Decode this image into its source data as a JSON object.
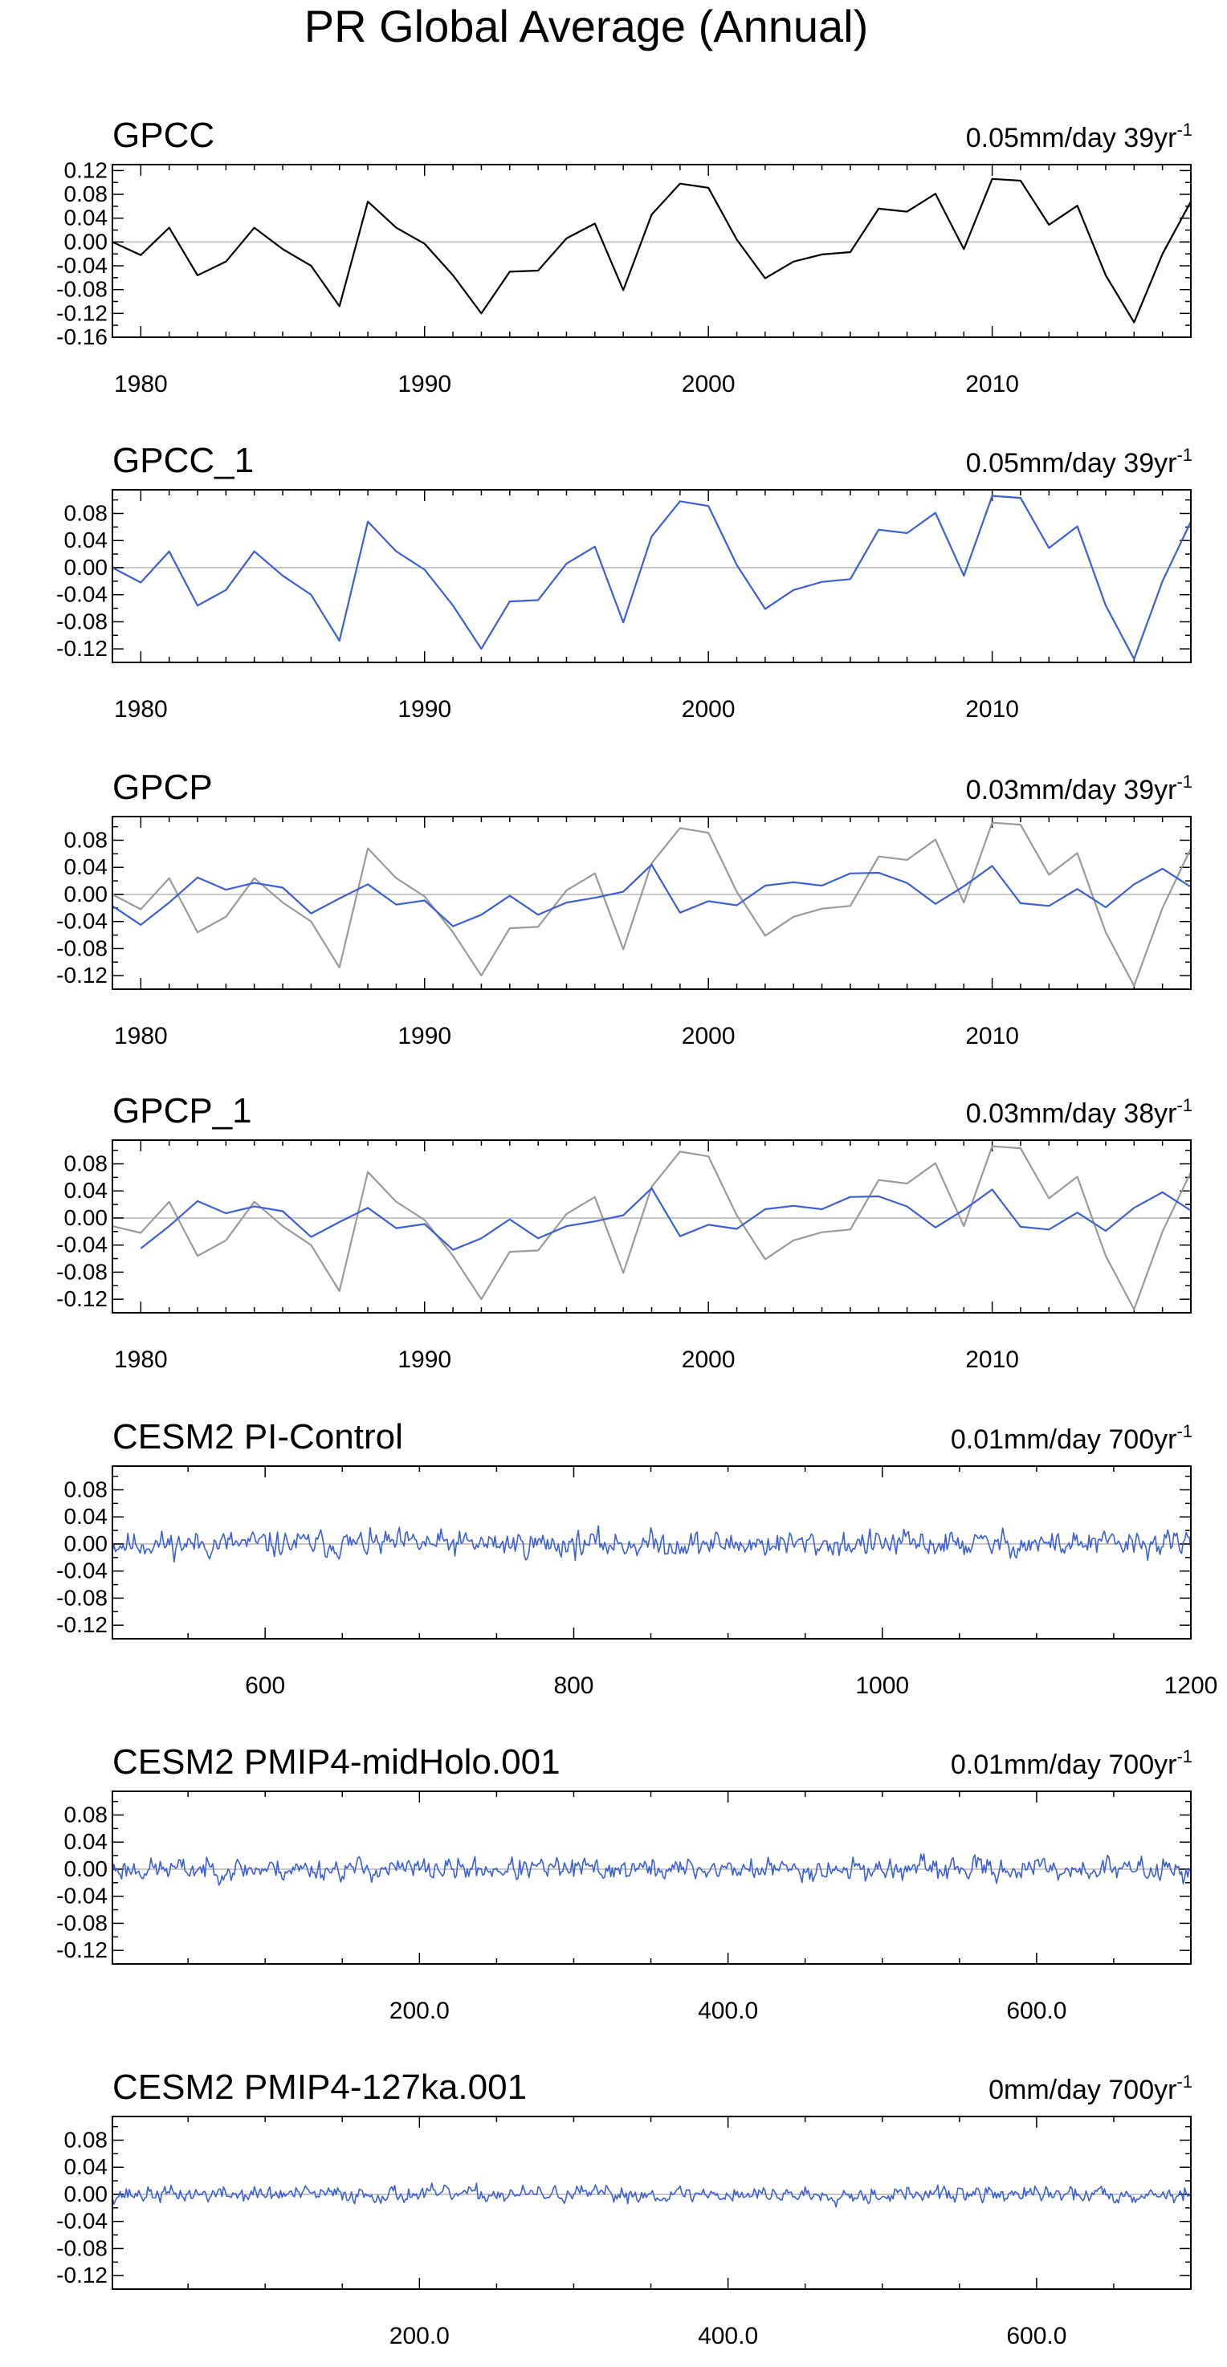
{
  "title": "PR Global Average (Annual)",
  "colors": {
    "observed": "#000000",
    "model": "#3a5fd9",
    "reference": "#9a9a9a",
    "zero_line": "#c8c8c8"
  },
  "chart_data": [
    {
      "type": "line",
      "title": "GPCC",
      "right_label": "0.05mm/day 39yr",
      "right_label_sup": "-1",
      "x_range": [
        1979,
        2017
      ],
      "ylim": [
        -0.16,
        0.13
      ],
      "y_ticks": [
        "0.12",
        "0.08",
        "0.04",
        "0.00",
        "-0.04",
        "-0.08",
        "-0.12",
        "-0.16"
      ],
      "x_ticks": [
        "1980",
        "1990",
        "2000",
        "2010"
      ],
      "series": [
        {
          "color": "#000000",
          "x_start": 1979,
          "values": [
            0.0,
            -0.022,
            0.024,
            -0.056,
            -0.033,
            0.024,
            -0.012,
            -0.04,
            -0.108,
            0.068,
            0.024,
            -0.003,
            -0.056,
            -0.12,
            -0.05,
            -0.048,
            0.006,
            0.031,
            -0.081,
            0.046,
            0.098,
            0.091,
            0.004,
            -0.061,
            -0.033,
            -0.021,
            -0.017,
            0.056,
            0.051,
            0.081,
            -0.012,
            0.106,
            0.103,
            0.029,
            0.061,
            -0.056,
            -0.135,
            -0.02,
            0.068
          ]
        }
      ]
    },
    {
      "type": "line",
      "title": "GPCC_1",
      "right_label": "0.05mm/day 39yr",
      "right_label_sup": "-1",
      "x_range": [
        1979,
        2017
      ],
      "ylim": [
        -0.14,
        0.115
      ],
      "y_ticks": [
        "0.08",
        "0.04",
        "0.00",
        "-0.04",
        "-0.08",
        "-0.12"
      ],
      "x_ticks": [
        "1980",
        "1990",
        "2000",
        "2010"
      ],
      "series": [
        {
          "color": "#3a5fd9",
          "x_start": 1979,
          "values": [
            0.0,
            -0.022,
            0.024,
            -0.056,
            -0.033,
            0.024,
            -0.012,
            -0.04,
            -0.108,
            0.068,
            0.024,
            -0.003,
            -0.056,
            -0.12,
            -0.05,
            -0.048,
            0.006,
            0.031,
            -0.081,
            0.046,
            0.098,
            0.091,
            0.004,
            -0.061,
            -0.033,
            -0.021,
            -0.017,
            0.056,
            0.051,
            0.081,
            -0.012,
            0.106,
            0.103,
            0.029,
            0.061,
            -0.056,
            -0.135,
            -0.02,
            0.068
          ]
        }
      ]
    },
    {
      "type": "line",
      "title": "GPCP",
      "right_label": "0.03mm/day 39yr",
      "right_label_sup": "-1",
      "x_range": [
        1979,
        2017
      ],
      "ylim": [
        -0.14,
        0.115
      ],
      "y_ticks": [
        "0.08",
        "0.04",
        "0.00",
        "-0.04",
        "-0.08",
        "-0.12"
      ],
      "x_ticks": [
        "1980",
        "1990",
        "2000",
        "2010"
      ],
      "series": [
        {
          "color": "#9a9a9a",
          "x_start": 1979,
          "values": [
            0.0,
            -0.022,
            0.024,
            -0.056,
            -0.033,
            0.024,
            -0.012,
            -0.04,
            -0.108,
            0.068,
            0.024,
            -0.003,
            -0.056,
            -0.12,
            -0.05,
            -0.048,
            0.006,
            0.031,
            -0.081,
            0.046,
            0.098,
            0.091,
            0.004,
            -0.061,
            -0.033,
            -0.021,
            -0.017,
            0.056,
            0.051,
            0.081,
            -0.012,
            0.106,
            0.103,
            0.029,
            0.061,
            -0.056,
            -0.135,
            -0.02,
            0.068
          ]
        },
        {
          "color": "#3a5fd9",
          "x_start": 1979,
          "values": [
            -0.017,
            -0.045,
            -0.012,
            0.025,
            0.007,
            0.017,
            0.01,
            -0.028,
            -0.006,
            0.015,
            -0.015,
            -0.009,
            -0.047,
            -0.03,
            -0.002,
            -0.03,
            -0.012,
            -0.005,
            0.004,
            0.044,
            -0.027,
            -0.01,
            -0.016,
            0.013,
            0.018,
            0.013,
            0.031,
            0.032,
            0.017,
            -0.014,
            0.012,
            0.042,
            -0.013,
            -0.017,
            0.008,
            -0.019,
            0.015,
            0.038,
            0.011
          ]
        }
      ]
    },
    {
      "type": "line",
      "title": "GPCP_1",
      "right_label": "0.03mm/day 38yr",
      "right_label_sup": "-1",
      "x_range": [
        1979,
        2017
      ],
      "ylim": [
        -0.14,
        0.115
      ],
      "y_ticks": [
        "0.08",
        "0.04",
        "0.00",
        "-0.04",
        "-0.08",
        "-0.12"
      ],
      "x_ticks": [
        "1980",
        "1990",
        "2000",
        "2010"
      ],
      "series": [
        {
          "color": "#9a9a9a",
          "x_start": 1979,
          "values": [
            -0.012,
            -0.022,
            0.024,
            -0.056,
            -0.033,
            0.024,
            -0.012,
            -0.04,
            -0.108,
            0.068,
            0.024,
            -0.003,
            -0.056,
            -0.12,
            -0.05,
            -0.048,
            0.006,
            0.031,
            -0.081,
            0.046,
            0.098,
            0.091,
            0.004,
            -0.061,
            -0.033,
            -0.021,
            -0.017,
            0.056,
            0.051,
            0.081,
            -0.012,
            0.106,
            0.103,
            0.029,
            0.061,
            -0.056,
            -0.135,
            -0.02,
            0.068
          ]
        },
        {
          "color": "#3a5fd9",
          "x_start": 1980,
          "values": [
            -0.045,
            -0.012,
            0.025,
            0.007,
            0.017,
            0.01,
            -0.028,
            -0.006,
            0.015,
            -0.015,
            -0.009,
            -0.047,
            -0.03,
            -0.002,
            -0.03,
            -0.012,
            -0.005,
            0.004,
            0.044,
            -0.027,
            -0.01,
            -0.016,
            0.013,
            0.018,
            0.013,
            0.031,
            0.032,
            0.017,
            -0.014,
            0.012,
            0.042,
            -0.013,
            -0.017,
            0.008,
            -0.019,
            0.015,
            0.038,
            0.011
          ]
        }
      ]
    },
    {
      "type": "line",
      "title": "CESM2 PI-Control",
      "right_label": "0.01mm/day 700yr",
      "right_label_sup": "-1",
      "x_range": [
        501,
        1200
      ],
      "ylim": [
        -0.14,
        0.115
      ],
      "y_ticks": [
        "0.08",
        "0.04",
        "0.00",
        "-0.04",
        "-0.08",
        "-0.12"
      ],
      "x_ticks": [
        "600",
        "800",
        "1000",
        "1200"
      ],
      "x_tick_values": [
        600,
        800,
        1000,
        1200
      ],
      "series": [
        {
          "color": "#3a5fd9",
          "noise": {
            "n": 700,
            "amp": 0.013,
            "seed": 11
          }
        }
      ]
    },
    {
      "type": "line",
      "title": "CESM2 PMIP4-midHolo.001",
      "right_label": "0.01mm/day 700yr",
      "right_label_sup": "-1",
      "x_range": [
        1,
        700
      ],
      "ylim": [
        -0.14,
        0.115
      ],
      "y_ticks": [
        "0.08",
        "0.04",
        "0.00",
        "-0.04",
        "-0.08",
        "-0.12"
      ],
      "x_ticks": [
        "200.0",
        "400.0",
        "600.0"
      ],
      "x_tick_values": [
        200,
        400,
        600
      ],
      "series": [
        {
          "color": "#3a5fd9",
          "noise": {
            "n": 700,
            "amp": 0.011,
            "seed": 23
          }
        }
      ]
    },
    {
      "type": "line",
      "title": "CESM2 PMIP4-127ka.001",
      "right_label": "0mm/day 700yr",
      "right_label_sup": "-1",
      "x_range": [
        1,
        700
      ],
      "ylim": [
        -0.14,
        0.115
      ],
      "y_ticks": [
        "0.08",
        "0.04",
        "0.00",
        "-0.04",
        "-0.08",
        "-0.12"
      ],
      "x_ticks": [
        "200.0",
        "400.0",
        "600.0"
      ],
      "x_tick_values": [
        200,
        400,
        600
      ],
      "series": [
        {
          "color": "#3a5fd9",
          "noise": {
            "n": 700,
            "amp": 0.008,
            "seed": 37
          }
        }
      ]
    }
  ]
}
